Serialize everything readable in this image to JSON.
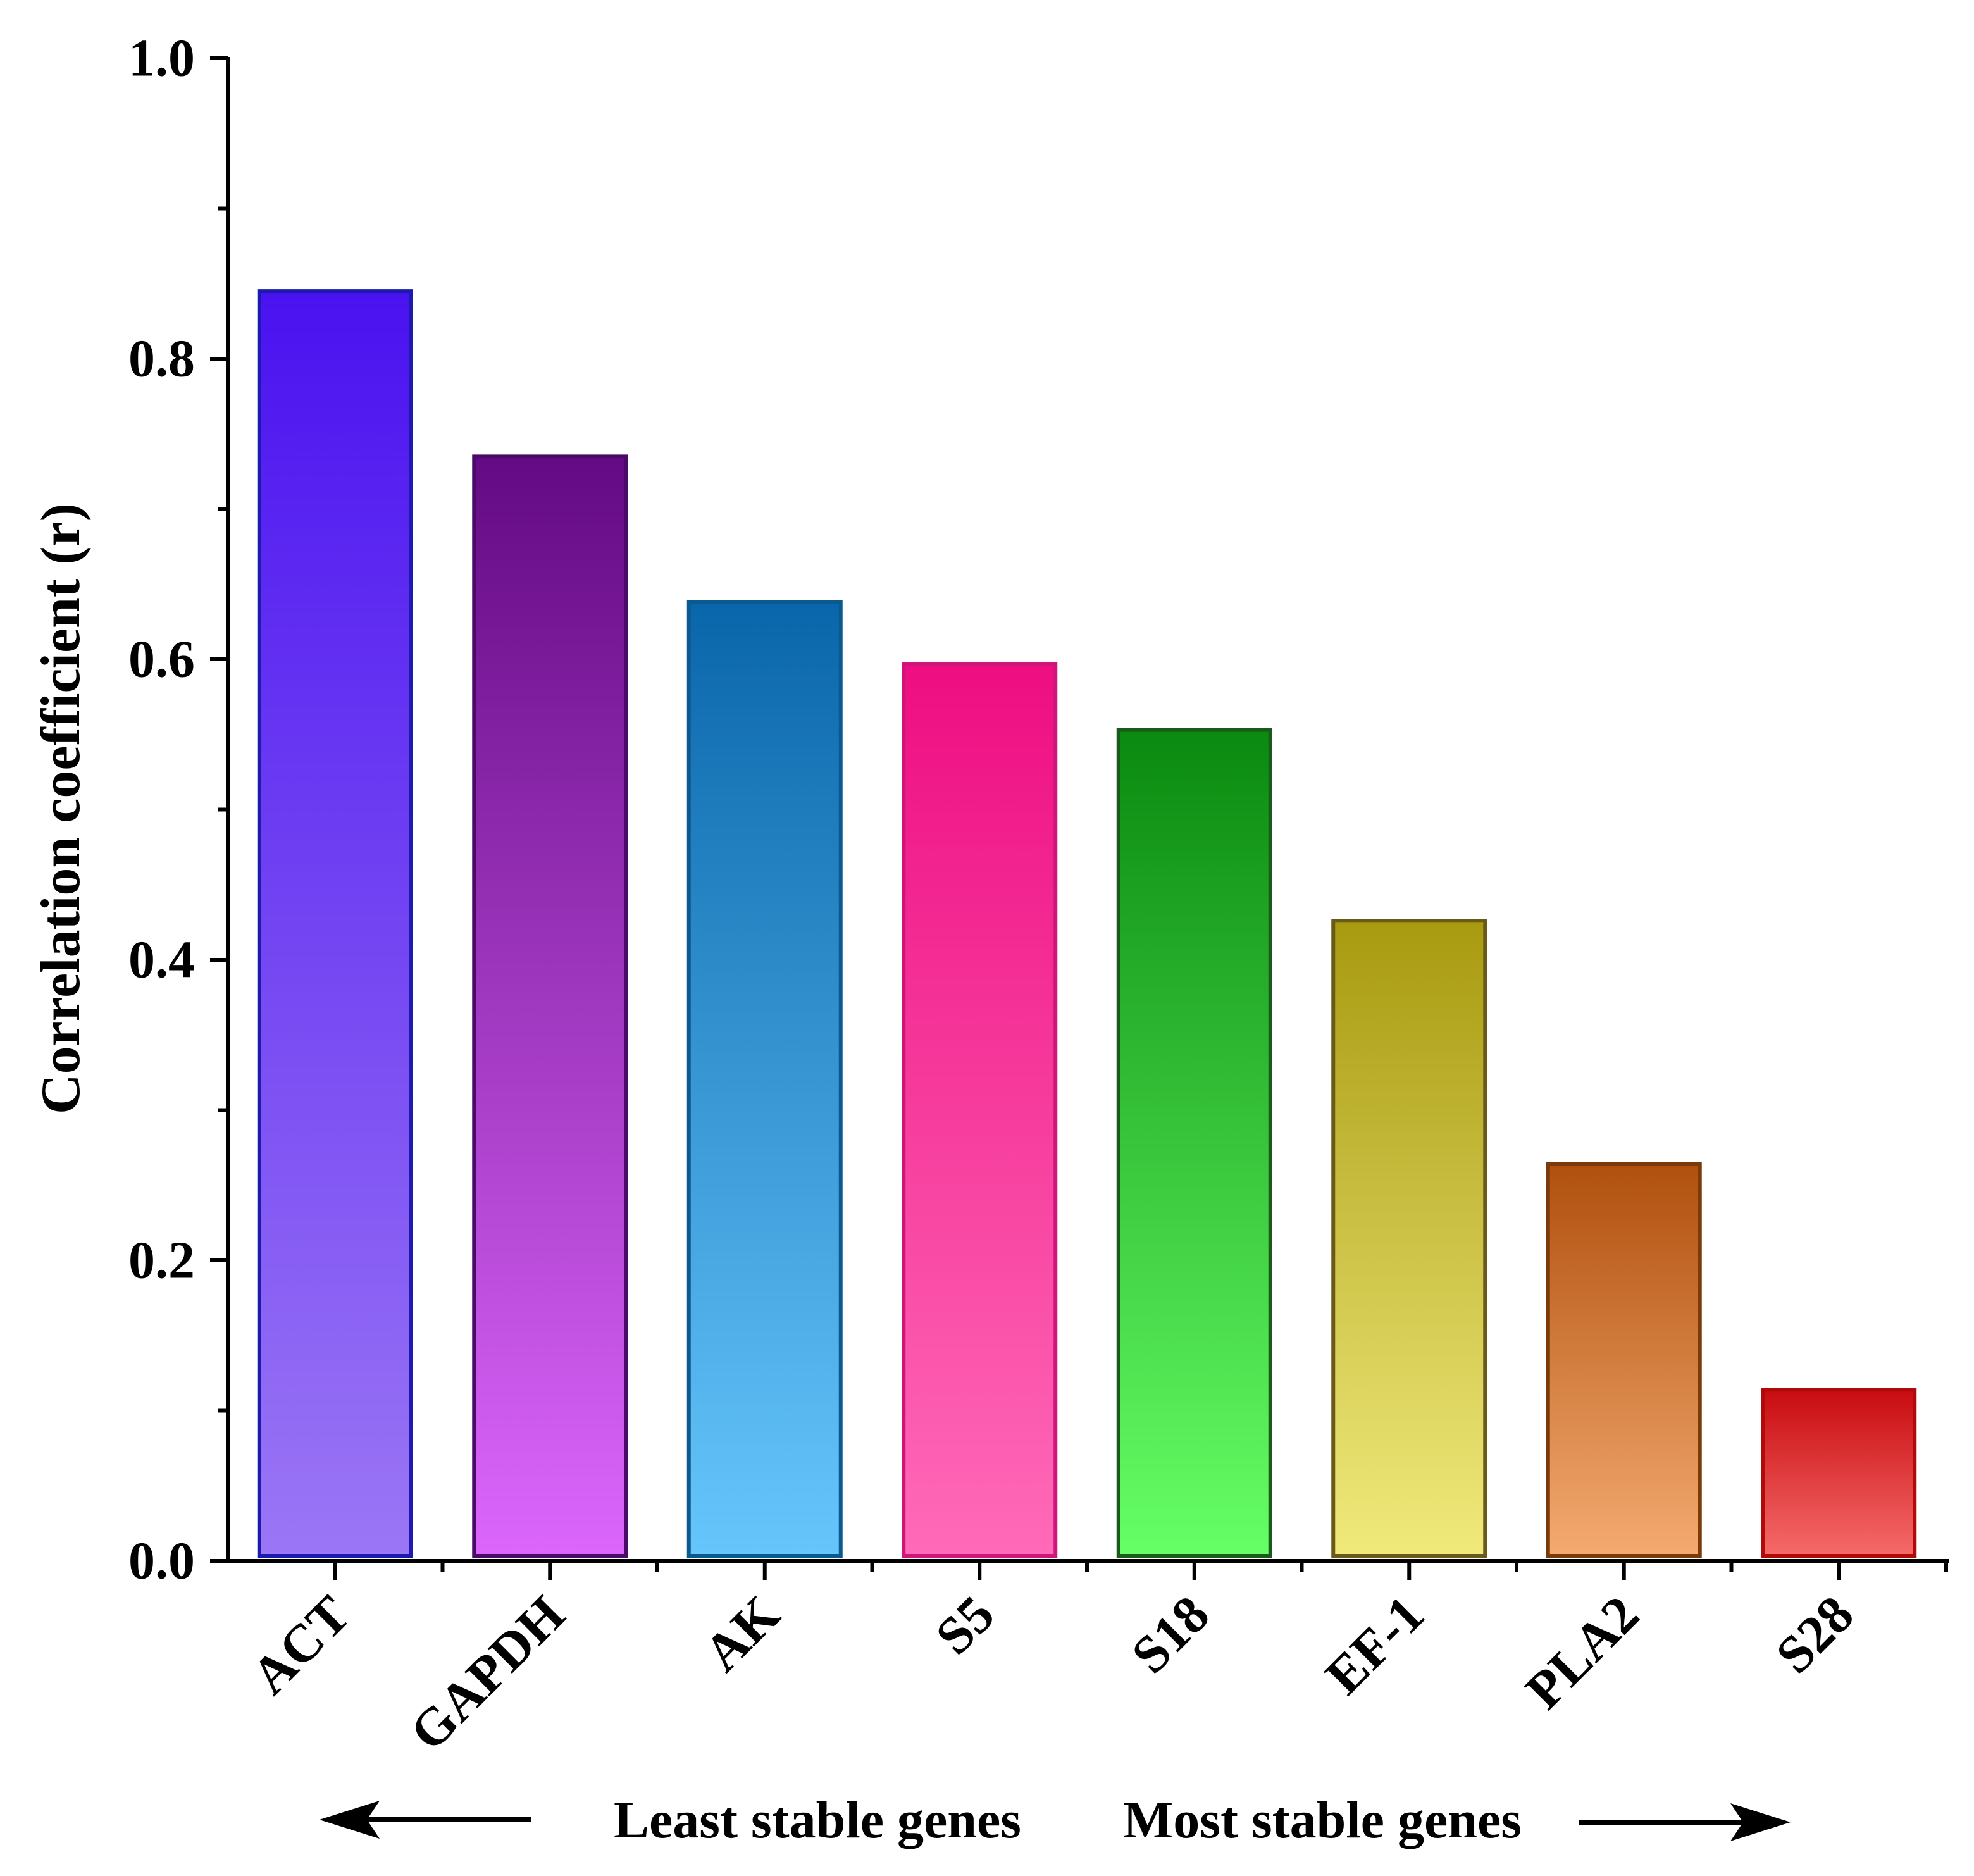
{
  "chart_data": {
    "type": "bar",
    "categories": [
      "ACT",
      "GAPDH",
      "AK",
      "S5",
      "S18",
      "EF-1",
      "PLA2",
      "S28"
    ],
    "values": [
      0.845,
      0.735,
      0.638,
      0.597,
      0.553,
      0.426,
      0.264,
      0.114
    ],
    "title": "",
    "xlabel": "",
    "ylabel": "Correlation coefficient (r)",
    "ylim": [
      0,
      1.0
    ],
    "yticks": [
      0.0,
      0.2,
      0.4,
      0.6,
      0.8,
      1.0
    ],
    "ytick_labels": [
      "0.0",
      "0.2",
      "0.4",
      "0.6",
      "0.8",
      "1.0"
    ],
    "grid": false,
    "legend": "none",
    "bar_styles": [
      {
        "top": "#4a12f0",
        "bottom": "#9b76f5",
        "stroke": "#1b1bb0"
      },
      {
        "top": "#640a84",
        "bottom": "#dc66fc",
        "stroke": "#4a0a6a"
      },
      {
        "top": "#0a66aa",
        "bottom": "#66c6fc",
        "stroke": "#0a5a90"
      },
      {
        "top": "#ee0e82",
        "bottom": "#ff6ab8",
        "stroke": "#d0157a"
      },
      {
        "top": "#0a8a10",
        "bottom": "#66ff66",
        "stroke": "#1a5a1a"
      },
      {
        "top": "#a89a10",
        "bottom": "#f0ea7c",
        "stroke": "#6a5a1a"
      },
      {
        "top": "#b0500e",
        "bottom": "#f4aa70",
        "stroke": "#7a3a0a"
      },
      {
        "top": "#c80c10",
        "bottom": "#f66a6a",
        "stroke": "#b00a0a"
      }
    ],
    "annotations": {
      "left": "Least stable genes",
      "right": "Most stable genes"
    }
  }
}
